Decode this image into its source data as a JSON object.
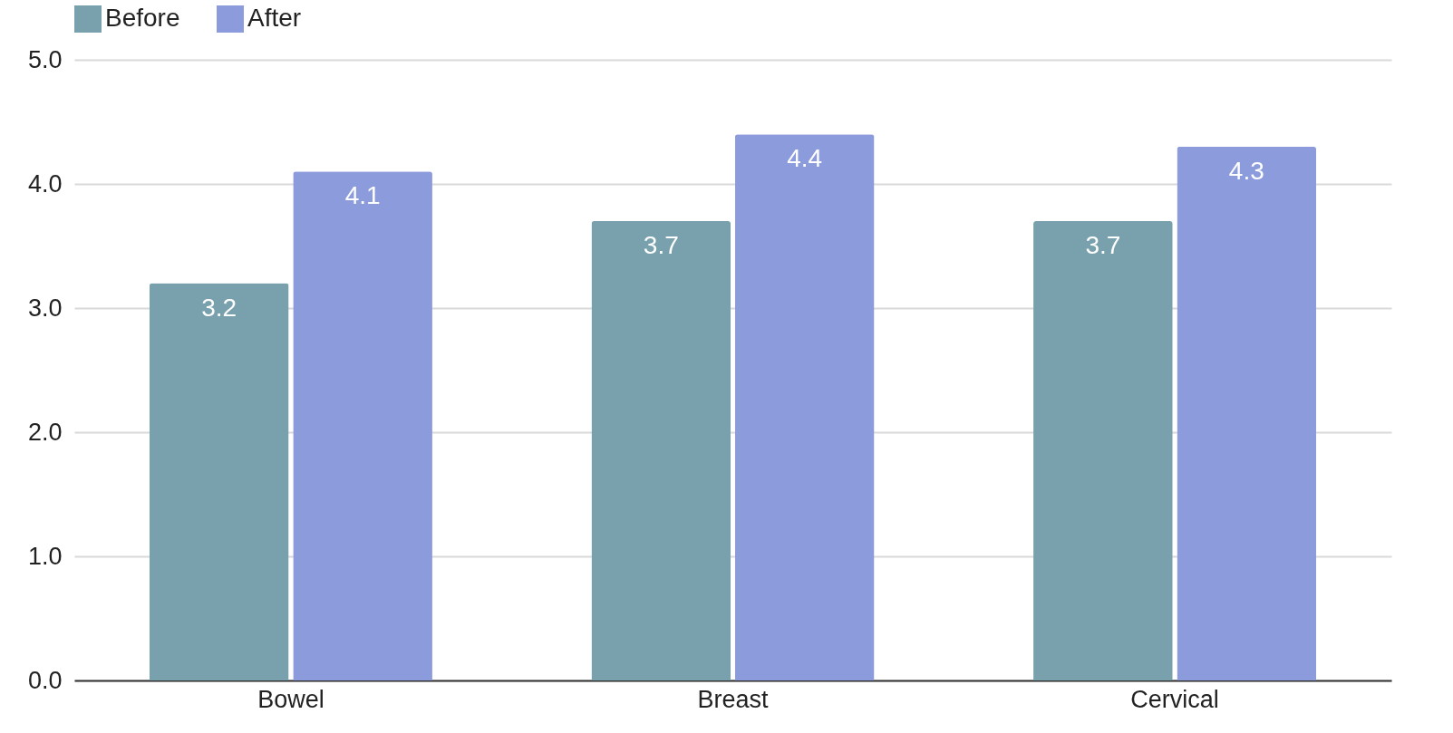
{
  "chart_data": {
    "type": "bar",
    "categories": [
      "Bowel",
      "Breast",
      "Cervical"
    ],
    "series": [
      {
        "name": "Before",
        "color": "#78a0ad",
        "values": [
          3.2,
          3.7,
          3.7
        ]
      },
      {
        "name": "After",
        "color": "#8b9bdc",
        "values": [
          4.1,
          4.4,
          4.3
        ]
      }
    ],
    "ylim": [
      0,
      5
    ],
    "yticks": [
      {
        "value": 0,
        "label": "0.0"
      },
      {
        "value": 1,
        "label": "1.0"
      },
      {
        "value": 2,
        "label": "2.0"
      },
      {
        "value": 3,
        "label": "3.0"
      },
      {
        "value": 4,
        "label": "4.0"
      },
      {
        "value": 5,
        "label": "5.0"
      }
    ],
    "grid": "y",
    "legend": "top",
    "data_labels": true
  }
}
